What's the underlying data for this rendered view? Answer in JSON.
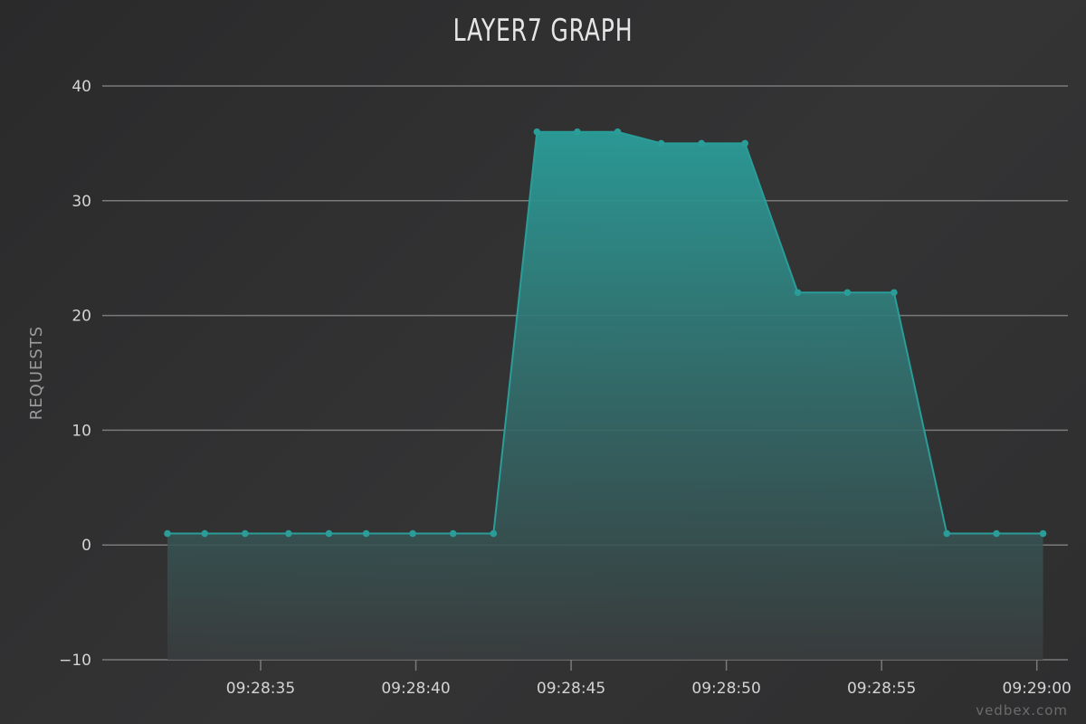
{
  "chart_data": {
    "type": "area",
    "title": "LAYER7 GRAPH",
    "xlabel": "",
    "ylabel": "REQUESTS",
    "ylim": [
      -10,
      40
    ],
    "yticks": [
      -10,
      0,
      10,
      20,
      30,
      40
    ],
    "xticks": [
      "09:28:35",
      "09:28:40",
      "09:28:45",
      "09:28:50",
      "09:28:55",
      "09:29:00"
    ],
    "xtick_seconds": [
      35,
      40,
      45,
      50,
      55,
      60
    ],
    "xlim_seconds": [
      29.9,
      61.0
    ],
    "grid": true,
    "legend": "none",
    "colors": {
      "line": "#2a9d99",
      "fill_top": "#2a9d99",
      "fill_bottom": "#3a3d3e",
      "grid": "#7a7a7a"
    },
    "series": [
      {
        "x_seconds": [
          32.0,
          33.2,
          34.5,
          35.9,
          37.2,
          38.4,
          39.9,
          41.2,
          42.5,
          43.9,
          45.2,
          46.5,
          47.9,
          49.2,
          50.6,
          52.3,
          53.9,
          55.4,
          57.1,
          58.7,
          60.2
        ],
        "x": [
          "09:28:32",
          "09:28:33",
          "09:28:34",
          "09:28:36",
          "09:28:37",
          "09:28:38",
          "09:28:40",
          "09:28:41",
          "09:28:42",
          "09:28:44",
          "09:28:45",
          "09:28:46",
          "09:28:48",
          "09:28:49",
          "09:28:50",
          "09:28:52",
          "09:28:54",
          "09:28:55",
          "09:28:57",
          "09:28:59",
          "09:29:00"
        ],
        "values": [
          1,
          1,
          1,
          1,
          1,
          1,
          1,
          1,
          1,
          36,
          36,
          36,
          35,
          35,
          35,
          22,
          22,
          22,
          1,
          1,
          1
        ]
      }
    ]
  },
  "credit": "vedbex.com"
}
